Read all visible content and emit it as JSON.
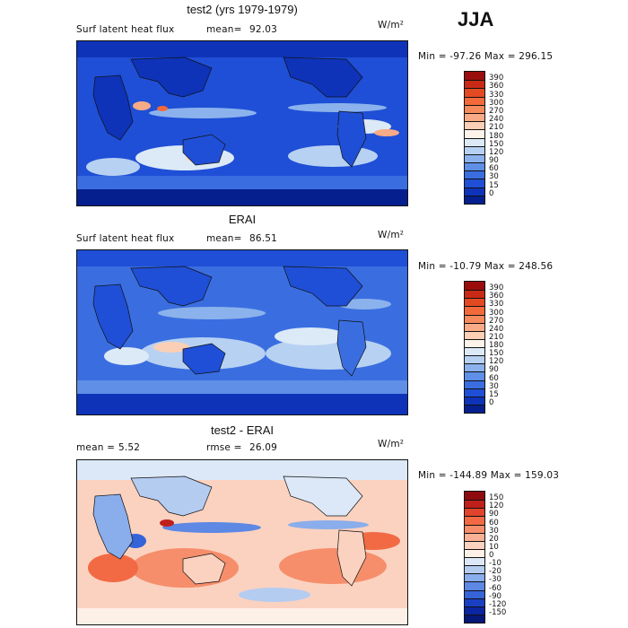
{
  "season": "JJA",
  "panels": [
    {
      "title": "test2 (yrs 1979-1979)",
      "left_text": "Surf latent heat flux",
      "mean_label": "mean=",
      "mean_value": "92.03",
      "units": "W/m²",
      "minmax": "Min = -97.26  Max = 296.15",
      "colorbar_levels": [
        "390",
        "360",
        "330",
        "300",
        "270",
        "240",
        "210",
        "180",
        "150",
        "120",
        "90",
        "60",
        "30",
        "15",
        "0"
      ],
      "colorbar_colors": [
        "#9b0d0d",
        "#c82a16",
        "#e34a22",
        "#f26a3a",
        "#f58a5c",
        "#f8ab86",
        "#fbcfb5",
        "#fdf3ea",
        "#dce9f7",
        "#b7d1f2",
        "#8bb2ec",
        "#5f8fe6",
        "#3a6ee0",
        "#1f4fd6",
        "#0e33b9",
        "#061f8e"
      ]
    },
    {
      "title": "ERAI",
      "left_text": "Surf latent heat flux",
      "mean_label": "mean=",
      "mean_value": "86.51",
      "units": "W/m²",
      "minmax": "Min = -10.79  Max = 248.56",
      "colorbar_levels": [
        "390",
        "360",
        "330",
        "300",
        "270",
        "240",
        "210",
        "180",
        "150",
        "120",
        "90",
        "60",
        "30",
        "15",
        "0"
      ],
      "colorbar_colors": [
        "#9b0d0d",
        "#c82a16",
        "#e34a22",
        "#f26a3a",
        "#f58a5c",
        "#f8ab86",
        "#fbcfb5",
        "#fdf3ea",
        "#dce9f7",
        "#b7d1f2",
        "#8bb2ec",
        "#5f8fe6",
        "#3a6ee0",
        "#1f4fd6",
        "#0e33b9",
        "#061f8e"
      ]
    },
    {
      "title": "test2 - ERAI",
      "left_text": "mean =",
      "mean_label": "",
      "mean_value": "5.52",
      "rmse_label": "rmse =",
      "rmse_value": "26.09",
      "units": "W/m²",
      "minmax": "Min = -144.89  Max = 159.03",
      "colorbar_levels": [
        "150",
        "120",
        "90",
        "60",
        "30",
        "20",
        "10",
        "0",
        "-10",
        "-20",
        "-30",
        "-60",
        "-90",
        "-120",
        "-150"
      ],
      "colorbar_colors": [
        "#8e0b10",
        "#c0201b",
        "#e0442a",
        "#f26a44",
        "#f68e6b",
        "#f9b196",
        "#fbd2c0",
        "#fdf0e6",
        "#dce8f7",
        "#b5ccf1",
        "#8aadeb",
        "#5d88e4",
        "#3563d8",
        "#1b3fc3",
        "#0c25a0",
        "#061877"
      ]
    }
  ]
}
